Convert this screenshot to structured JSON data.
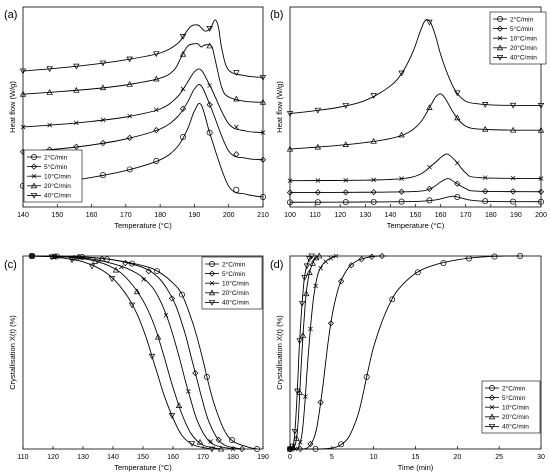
{
  "chart_data": [
    {
      "panel": "(a)",
      "type": "line",
      "xlabel": "Temperature (°C)",
      "ylabel": "Heat flow (W/g)",
      "xlim": [
        140,
        210
      ],
      "xticks": [
        140,
        150,
        160,
        170,
        180,
        190,
        200,
        210
      ],
      "yticks_labeled": false,
      "legend": "bottom-left",
      "series": [
        {
          "name": "2°C/min",
          "marker": "circle",
          "x": [
            140,
            150,
            160,
            170,
            180,
            185,
            188,
            190,
            192,
            195,
            200,
            205,
            210
          ],
          "y": [
            0.53,
            0.62,
            0.74,
            0.91,
            1.18,
            1.5,
            1.95,
            2.4,
            2.55,
            1.7,
            0.52,
            0.32,
            0.25
          ]
        },
        {
          "name": "5°C/min",
          "marker": "diamond",
          "x": [
            140,
            150,
            160,
            170,
            180,
            185,
            188,
            190,
            192,
            195,
            200,
            205,
            210
          ],
          "y": [
            1.38,
            1.45,
            1.55,
            1.7,
            1.95,
            2.25,
            2.62,
            2.95,
            3.03,
            2.45,
            1.4,
            1.22,
            1.18
          ]
        },
        {
          "name": "10°C/min",
          "marker": "x",
          "x": [
            140,
            150,
            160,
            170,
            180,
            185,
            188,
            190,
            192,
            195,
            200,
            205,
            210
          ],
          "y": [
            2.0,
            2.06,
            2.14,
            2.25,
            2.45,
            2.75,
            3.12,
            3.38,
            3.42,
            2.95,
            2.08,
            1.9,
            1.86
          ]
        },
        {
          "name": "20°C/min",
          "marker": "triangle-up",
          "x": [
            140,
            150,
            160,
            170,
            180,
            184,
            186,
            188,
            190,
            191,
            192,
            193,
            195,
            196,
            198,
            200,
            205,
            210
          ],
          "y": [
            2.82,
            2.88,
            2.95,
            3.05,
            3.22,
            3.42,
            3.72,
            4.02,
            4.08,
            4.08,
            4.0,
            4.05,
            4.02,
            3.7,
            2.98,
            2.75,
            2.64,
            2.62
          ]
        },
        {
          "name": "40°C/min",
          "marker": "triangle-down",
          "x": [
            140,
            150,
            160,
            170,
            180,
            185,
            187,
            189,
            191,
            192,
            193,
            194,
            195,
            196,
            197,
            198,
            200,
            205,
            210
          ],
          "y": [
            3.4,
            3.47,
            3.56,
            3.68,
            3.85,
            4.08,
            4.3,
            4.52,
            4.55,
            4.48,
            4.4,
            4.42,
            4.52,
            4.68,
            4.5,
            3.95,
            3.42,
            3.28,
            3.24
          ]
        }
      ]
    },
    {
      "panel": "(b)",
      "type": "line",
      "xlabel": "Temperature (°C)",
      "ylabel": "Heat flow (W/g)",
      "xlim": [
        100,
        200
      ],
      "xticks": [
        100,
        110,
        120,
        130,
        140,
        150,
        160,
        170,
        180,
        190,
        200
      ],
      "yticks_labeled": false,
      "legend": "top-right",
      "series": [
        {
          "name": "2°C/min",
          "marker": "circle",
          "x": [
            100,
            130,
            150,
            158,
            162,
            165,
            168,
            172,
            180,
            200
          ],
          "y": [
            0.18,
            0.19,
            0.21,
            0.27,
            0.36,
            0.41,
            0.35,
            0.26,
            0.21,
            0.2
          ]
        },
        {
          "name": "5°C/min",
          "marker": "diamond",
          "x": [
            100,
            130,
            150,
            156,
            160,
            163,
            166,
            170,
            175,
            200
          ],
          "y": [
            0.55,
            0.56,
            0.59,
            0.7,
            0.95,
            1.08,
            0.92,
            0.7,
            0.6,
            0.58
          ]
        },
        {
          "name": "10°C/min",
          "marker": "x",
          "x": [
            100,
            130,
            145,
            152,
            157,
            161,
            163,
            166,
            170,
            175,
            200
          ],
          "y": [
            1.0,
            1.02,
            1.08,
            1.25,
            1.62,
            1.95,
            2.0,
            1.75,
            1.3,
            1.12,
            1.08
          ]
        },
        {
          "name": "20°C/min",
          "marker": "triangle-up",
          "x": [
            100,
            110,
            120,
            130,
            140,
            147,
            152,
            156,
            158,
            160,
            162,
            165,
            168,
            172,
            180,
            190,
            200
          ],
          "y": [
            2.2,
            2.27,
            2.35,
            2.45,
            2.6,
            2.82,
            3.22,
            3.85,
            4.18,
            4.3,
            4.1,
            3.6,
            3.22,
            3.0,
            2.94,
            2.92,
            2.92
          ]
        },
        {
          "name": "40°C/min",
          "marker": "triangle-down",
          "x": [
            100,
            110,
            120,
            130,
            140,
            145,
            149,
            152,
            154,
            156,
            158,
            160,
            163,
            166,
            170,
            175,
            180,
            190,
            200
          ],
          "y": [
            3.55,
            3.66,
            3.8,
            4.05,
            4.6,
            5.15,
            5.9,
            6.7,
            7.1,
            7.0,
            6.5,
            5.8,
            5.0,
            4.4,
            4.02,
            3.92,
            3.88,
            3.86,
            3.86
          ]
        }
      ]
    },
    {
      "panel": "(c)",
      "type": "line",
      "xlabel": "Temperature (°C)",
      "ylabel": "Crystallisation X(t) (%)",
      "xlim": [
        110,
        190
      ],
      "xticks": [
        110,
        120,
        130,
        140,
        150,
        160,
        170,
        180,
        190
      ],
      "yticks_labeled": false,
      "legend": "top-right",
      "series": [
        {
          "name": "2°C/min",
          "marker": "circle",
          "x": [
            113,
            130,
            140,
            150,
            155,
            160,
            163,
            166,
            168,
            170,
            172,
            174,
            177,
            180,
            185,
            188
          ],
          "y": [
            100,
            99.5,
            98,
            95,
            92,
            86,
            80,
            68,
            58,
            46,
            33,
            22,
            10,
            4,
            1,
            0
          ]
        },
        {
          "name": "5°C/min",
          "marker": "diamond",
          "x": [
            113,
            130,
            140,
            150,
            155,
            158,
            161,
            164,
            166,
            168,
            170,
            172,
            175,
            178,
            183
          ],
          "y": [
            100,
            99.5,
            98,
            94,
            89,
            83,
            74,
            60,
            48,
            36,
            24,
            14,
            5,
            1.5,
            0
          ]
        },
        {
          "name": "10°C/min",
          "marker": "x",
          "x": [
            113,
            130,
            140,
            148,
            153,
            156,
            159,
            162,
            164,
            166,
            168,
            171,
            174,
            180
          ],
          "y": [
            100,
            99,
            96,
            91,
            84,
            76,
            64,
            48,
            36,
            25,
            15,
            6,
            2,
            0
          ]
        },
        {
          "name": "20°C/min",
          "marker": "triangle-up",
          "x": [
            113,
            125,
            135,
            142,
            147,
            151,
            154,
            157,
            159,
            161,
            163,
            166,
            170,
            176
          ],
          "y": [
            100,
            99.5,
            97,
            92,
            84,
            74,
            63,
            48,
            37,
            27,
            18,
            8,
            2,
            0
          ]
        },
        {
          "name": "40°C/min",
          "marker": "triangle-down",
          "x": [
            113,
            120,
            130,
            138,
            144,
            148,
            151,
            153,
            155,
            157,
            160,
            163,
            167,
            173
          ],
          "y": [
            100,
            99.5,
            97,
            91,
            81,
            70,
            58,
            48,
            38,
            28,
            16,
            7,
            2,
            0
          ]
        }
      ]
    },
    {
      "panel": "(d)",
      "type": "line",
      "xlabel": "Time (min)",
      "ylabel": "Crystallisation X(t) (%)",
      "xlim": [
        0,
        30
      ],
      "xticks": [
        0,
        5,
        10,
        15,
        20,
        25,
        30
      ],
      "yticks_labeled": false,
      "legend": "bottom-right",
      "series": [
        {
          "name": "2°C/min",
          "marker": "circle",
          "x": [
            0,
            3,
            5,
            6,
            7,
            8,
            8.5,
            9,
            9.5,
            10,
            11,
            12,
            13,
            15,
            17,
            20,
            23,
            26,
            27.5
          ],
          "y": [
            0,
            0,
            0.5,
            2,
            6,
            16,
            24,
            34,
            44,
            53,
            66,
            76,
            83,
            91,
            95,
            98,
            99.5,
            100,
            100
          ]
        },
        {
          "name": "5°C/min",
          "marker": "diamond",
          "x": [
            0,
            1.5,
            2.2,
            2.8,
            3.2,
            3.6,
            4,
            4.4,
            4.8,
            5.3,
            6,
            7,
            8,
            9,
            10,
            11
          ],
          "y": [
            0,
            0,
            1,
            5,
            11,
            22,
            35,
            50,
            63,
            75,
            86,
            94,
            97.5,
            99,
            99.8,
            100
          ]
        },
        {
          "name": "10°C/min",
          "marker": "x",
          "x": [
            0,
            0.8,
            1.2,
            1.5,
            1.8,
            2.0,
            2.3,
            2.6,
            2.9,
            3.3,
            3.8,
            4.5,
            5.5
          ],
          "y": [
            0,
            0,
            3,
            10,
            25,
            38,
            55,
            70,
            81,
            90,
            95,
            98,
            100
          ]
        },
        {
          "name": "20°C/min",
          "marker": "triangle-up",
          "x": [
            0,
            0.5,
            0.8,
            1.0,
            1.2,
            1.4,
            1.6,
            1.8,
            2.0,
            2.3,
            2.6,
            2.9,
            3.2,
            3.5
          ],
          "y": [
            0,
            1,
            6,
            16,
            32,
            48,
            62,
            74,
            83,
            91,
            95,
            98,
            99.5,
            100
          ]
        },
        {
          "name": "40°C/min",
          "marker": "triangle-down",
          "x": [
            0,
            0.4,
            0.6,
            0.8,
            1.0,
            1.1,
            1.25,
            1.4,
            1.55,
            1.7,
            1.9,
            2.1,
            2.3,
            2.6
          ],
          "y": [
            0,
            2,
            10,
            24,
            42,
            52,
            63,
            73,
            81,
            88,
            93,
            96,
            98.5,
            100
          ]
        }
      ]
    }
  ]
}
